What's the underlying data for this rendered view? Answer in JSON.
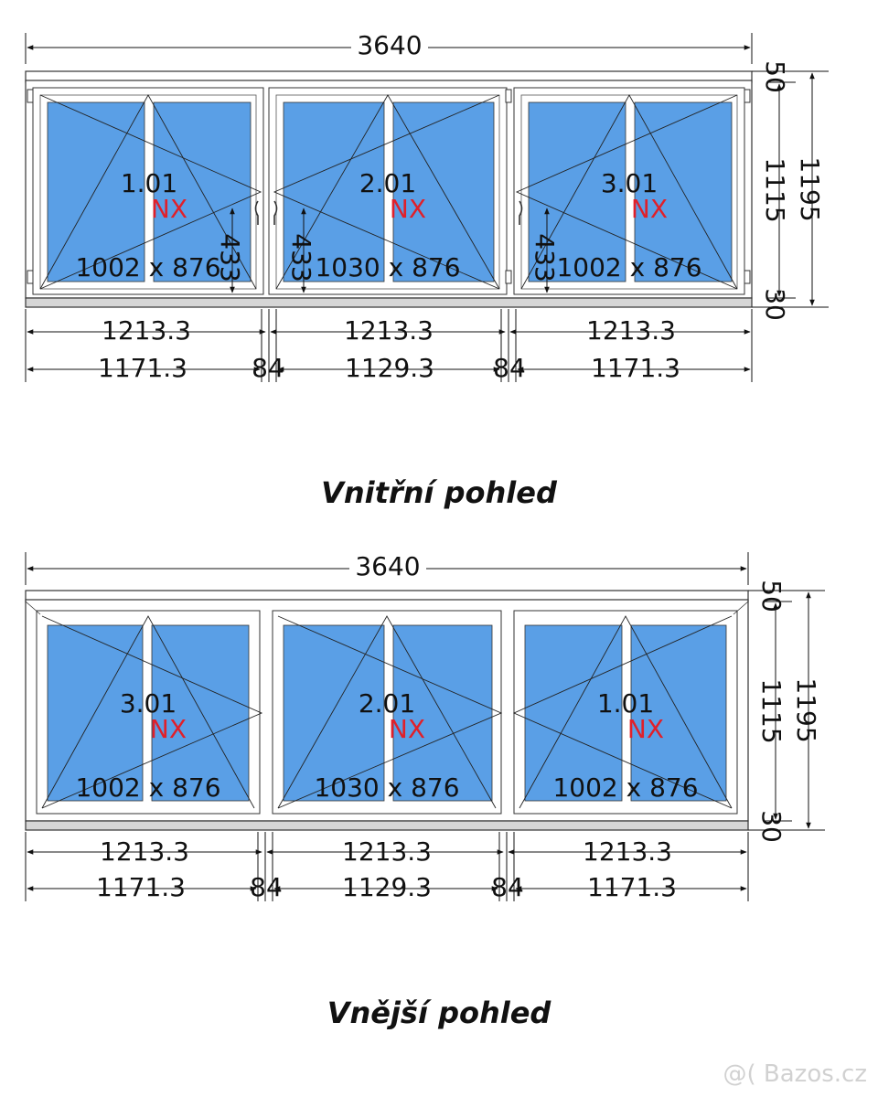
{
  "colors": {
    "glass": "#5a9fe6",
    "frame": "#ffffff",
    "outline": "#333333",
    "nx": "#e0202a",
    "sill": "#d6d6d6"
  },
  "views": [
    {
      "caption": "Vnitřní pohled",
      "total_width": "3640",
      "right_dims": {
        "top": "50",
        "middle": "1115",
        "bottom": "30",
        "overall": "1195"
      },
      "segments": [
        "1213.3",
        "1213.3",
        "1213.3"
      ],
      "glass_widths": [
        "1171.3",
        "1129.3",
        "1171.3"
      ],
      "mullions": [
        "84",
        "84"
      ],
      "windows": [
        {
          "id": "1.01",
          "code": "NX",
          "size": "1002 x 876"
        },
        {
          "id": "2.01",
          "code": "NX",
          "size": "1030 x 876"
        },
        {
          "id": "3.01",
          "code": "NX",
          "size": "1002 x 876"
        }
      ],
      "handle_heights": [
        "433",
        "433",
        "433"
      ]
    },
    {
      "caption": "Vnější pohled",
      "total_width": "3640",
      "right_dims": {
        "top": "50",
        "middle": "1115",
        "bottom": "30",
        "overall": "1195"
      },
      "segments": [
        "1213.3",
        "1213.3",
        "1213.3"
      ],
      "glass_widths": [
        "1171.3",
        "1129.3",
        "1171.3"
      ],
      "mullions": [
        "84",
        "84"
      ],
      "windows": [
        {
          "id": "3.01",
          "code": "NX",
          "size": "1002 x 876"
        },
        {
          "id": "2.01",
          "code": "NX",
          "size": "1030 x 876"
        },
        {
          "id": "1.01",
          "code": "NX",
          "size": "1002 x 876"
        }
      ]
    }
  ],
  "watermark": "@( Bazos.cz"
}
